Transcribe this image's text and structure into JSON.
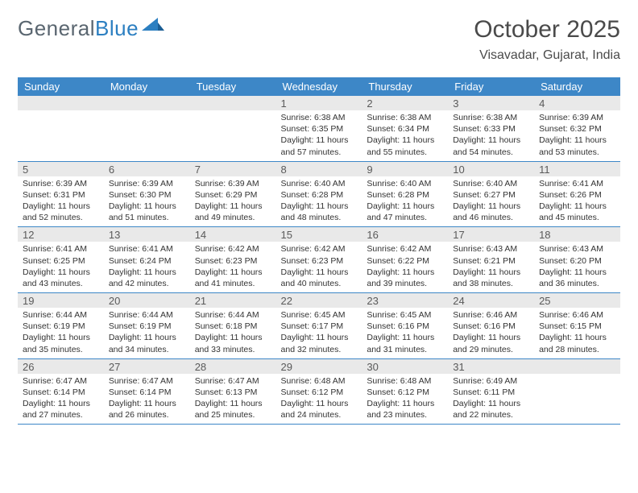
{
  "logo": {
    "word1": "General",
    "word2": "Blue"
  },
  "title": "October 2025",
  "location": "Visavadar, Gujarat, India",
  "colors": {
    "header_bg": "#3d87c7",
    "header_text": "#ffffff",
    "daynum_bg": "#e9e9e9",
    "row_border": "#3d87c7",
    "body_text": "#333333",
    "logo_gray": "#5a6670",
    "logo_blue": "#2c7fc1"
  },
  "weekdays": [
    "Sunday",
    "Monday",
    "Tuesday",
    "Wednesday",
    "Thursday",
    "Friday",
    "Saturday"
  ],
  "weeks": [
    [
      {
        "n": "",
        "sr": "",
        "ss": "",
        "dl": ""
      },
      {
        "n": "",
        "sr": "",
        "ss": "",
        "dl": ""
      },
      {
        "n": "",
        "sr": "",
        "ss": "",
        "dl": ""
      },
      {
        "n": "1",
        "sr": "Sunrise: 6:38 AM",
        "ss": "Sunset: 6:35 PM",
        "dl": "Daylight: 11 hours and 57 minutes."
      },
      {
        "n": "2",
        "sr": "Sunrise: 6:38 AM",
        "ss": "Sunset: 6:34 PM",
        "dl": "Daylight: 11 hours and 55 minutes."
      },
      {
        "n": "3",
        "sr": "Sunrise: 6:38 AM",
        "ss": "Sunset: 6:33 PM",
        "dl": "Daylight: 11 hours and 54 minutes."
      },
      {
        "n": "4",
        "sr": "Sunrise: 6:39 AM",
        "ss": "Sunset: 6:32 PM",
        "dl": "Daylight: 11 hours and 53 minutes."
      }
    ],
    [
      {
        "n": "5",
        "sr": "Sunrise: 6:39 AM",
        "ss": "Sunset: 6:31 PM",
        "dl": "Daylight: 11 hours and 52 minutes."
      },
      {
        "n": "6",
        "sr": "Sunrise: 6:39 AM",
        "ss": "Sunset: 6:30 PM",
        "dl": "Daylight: 11 hours and 51 minutes."
      },
      {
        "n": "7",
        "sr": "Sunrise: 6:39 AM",
        "ss": "Sunset: 6:29 PM",
        "dl": "Daylight: 11 hours and 49 minutes."
      },
      {
        "n": "8",
        "sr": "Sunrise: 6:40 AM",
        "ss": "Sunset: 6:28 PM",
        "dl": "Daylight: 11 hours and 48 minutes."
      },
      {
        "n": "9",
        "sr": "Sunrise: 6:40 AM",
        "ss": "Sunset: 6:28 PM",
        "dl": "Daylight: 11 hours and 47 minutes."
      },
      {
        "n": "10",
        "sr": "Sunrise: 6:40 AM",
        "ss": "Sunset: 6:27 PM",
        "dl": "Daylight: 11 hours and 46 minutes."
      },
      {
        "n": "11",
        "sr": "Sunrise: 6:41 AM",
        "ss": "Sunset: 6:26 PM",
        "dl": "Daylight: 11 hours and 45 minutes."
      }
    ],
    [
      {
        "n": "12",
        "sr": "Sunrise: 6:41 AM",
        "ss": "Sunset: 6:25 PM",
        "dl": "Daylight: 11 hours and 43 minutes."
      },
      {
        "n": "13",
        "sr": "Sunrise: 6:41 AM",
        "ss": "Sunset: 6:24 PM",
        "dl": "Daylight: 11 hours and 42 minutes."
      },
      {
        "n": "14",
        "sr": "Sunrise: 6:42 AM",
        "ss": "Sunset: 6:23 PM",
        "dl": "Daylight: 11 hours and 41 minutes."
      },
      {
        "n": "15",
        "sr": "Sunrise: 6:42 AM",
        "ss": "Sunset: 6:23 PM",
        "dl": "Daylight: 11 hours and 40 minutes."
      },
      {
        "n": "16",
        "sr": "Sunrise: 6:42 AM",
        "ss": "Sunset: 6:22 PM",
        "dl": "Daylight: 11 hours and 39 minutes."
      },
      {
        "n": "17",
        "sr": "Sunrise: 6:43 AM",
        "ss": "Sunset: 6:21 PM",
        "dl": "Daylight: 11 hours and 38 minutes."
      },
      {
        "n": "18",
        "sr": "Sunrise: 6:43 AM",
        "ss": "Sunset: 6:20 PM",
        "dl": "Daylight: 11 hours and 36 minutes."
      }
    ],
    [
      {
        "n": "19",
        "sr": "Sunrise: 6:44 AM",
        "ss": "Sunset: 6:19 PM",
        "dl": "Daylight: 11 hours and 35 minutes."
      },
      {
        "n": "20",
        "sr": "Sunrise: 6:44 AM",
        "ss": "Sunset: 6:19 PM",
        "dl": "Daylight: 11 hours and 34 minutes."
      },
      {
        "n": "21",
        "sr": "Sunrise: 6:44 AM",
        "ss": "Sunset: 6:18 PM",
        "dl": "Daylight: 11 hours and 33 minutes."
      },
      {
        "n": "22",
        "sr": "Sunrise: 6:45 AM",
        "ss": "Sunset: 6:17 PM",
        "dl": "Daylight: 11 hours and 32 minutes."
      },
      {
        "n": "23",
        "sr": "Sunrise: 6:45 AM",
        "ss": "Sunset: 6:16 PM",
        "dl": "Daylight: 11 hours and 31 minutes."
      },
      {
        "n": "24",
        "sr": "Sunrise: 6:46 AM",
        "ss": "Sunset: 6:16 PM",
        "dl": "Daylight: 11 hours and 29 minutes."
      },
      {
        "n": "25",
        "sr": "Sunrise: 6:46 AM",
        "ss": "Sunset: 6:15 PM",
        "dl": "Daylight: 11 hours and 28 minutes."
      }
    ],
    [
      {
        "n": "26",
        "sr": "Sunrise: 6:47 AM",
        "ss": "Sunset: 6:14 PM",
        "dl": "Daylight: 11 hours and 27 minutes."
      },
      {
        "n": "27",
        "sr": "Sunrise: 6:47 AM",
        "ss": "Sunset: 6:14 PM",
        "dl": "Daylight: 11 hours and 26 minutes."
      },
      {
        "n": "28",
        "sr": "Sunrise: 6:47 AM",
        "ss": "Sunset: 6:13 PM",
        "dl": "Daylight: 11 hours and 25 minutes."
      },
      {
        "n": "29",
        "sr": "Sunrise: 6:48 AM",
        "ss": "Sunset: 6:12 PM",
        "dl": "Daylight: 11 hours and 24 minutes."
      },
      {
        "n": "30",
        "sr": "Sunrise: 6:48 AM",
        "ss": "Sunset: 6:12 PM",
        "dl": "Daylight: 11 hours and 23 minutes."
      },
      {
        "n": "31",
        "sr": "Sunrise: 6:49 AM",
        "ss": "Sunset: 6:11 PM",
        "dl": "Daylight: 11 hours and 22 minutes."
      },
      {
        "n": "",
        "sr": "",
        "ss": "",
        "dl": ""
      }
    ]
  ]
}
